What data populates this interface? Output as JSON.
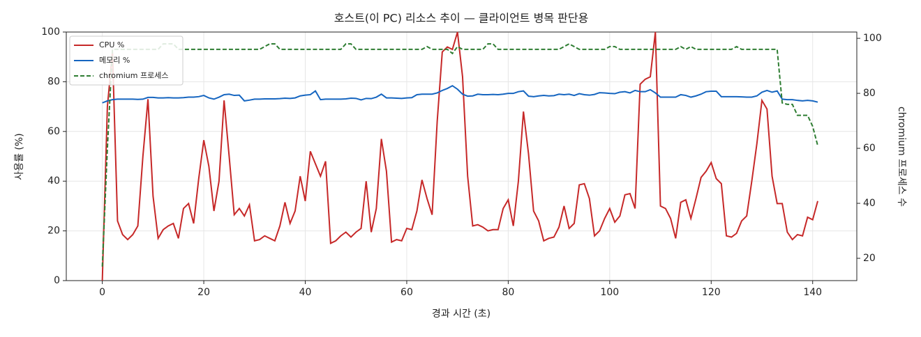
{
  "chart_data": {
    "type": "line",
    "title": "호스트(이 PC) 리소스 추이 — 클라이언트 병목 판단용",
    "xlabel": "경과 시간 (초)",
    "ylabel": "사용률 (%)",
    "y2label": "chromium 프로세스 수",
    "xlim": [
      -7.1,
      148.7
    ],
    "xticks": [
      0,
      20,
      40,
      60,
      80,
      100,
      120,
      140
    ],
    "ylim": [
      0,
      100
    ],
    "yticks": [
      0,
      20,
      40,
      60,
      80,
      100
    ],
    "y2lim": [
      11.9,
      102.3
    ],
    "y2ticks": [
      20,
      40,
      60,
      80,
      100
    ],
    "grid": true,
    "legend": "upper left",
    "x": [
      0,
      1,
      2,
      3,
      4,
      5,
      6,
      7,
      8,
      9,
      10,
      11,
      12,
      13,
      14,
      15,
      16,
      17,
      18,
      19,
      20,
      21,
      22,
      23,
      24,
      25,
      26,
      27,
      28,
      29,
      30,
      31,
      32,
      33,
      34,
      35,
      36,
      37,
      38,
      39,
      40,
      41,
      42,
      43,
      44,
      45,
      46,
      47,
      48,
      49,
      50,
      51,
      52,
      53,
      54,
      55,
      56,
      57,
      58,
      59,
      60,
      61,
      62,
      63,
      64,
      65,
      66,
      67,
      68,
      69,
      70,
      71,
      72,
      73,
      74,
      75,
      76,
      77,
      78,
      79,
      80,
      81,
      82,
      83,
      84,
      85,
      86,
      87,
      88,
      89,
      90,
      91,
      92,
      93,
      94,
      95,
      96,
      97,
      98,
      99,
      100,
      101,
      102,
      103,
      104,
      105,
      106,
      107,
      108,
      109,
      110,
      111,
      112,
      113,
      114,
      115,
      116,
      117,
      118,
      119,
      120,
      121,
      122,
      123,
      124,
      125,
      126,
      127,
      128,
      129,
      130,
      131,
      132,
      133,
      134,
      135,
      136,
      137,
      138,
      139,
      140,
      141
    ],
    "series": [
      {
        "name": "CPU %",
        "color": "#c62828",
        "dash": "solid",
        "values": [
          0,
          70,
          92,
          24,
          18.5,
          16.5,
          18.5,
          22,
          50,
          73,
          34,
          17,
          20.5,
          22,
          23,
          17,
          29,
          31,
          23,
          41,
          56.5,
          46,
          28,
          40,
          72.5,
          50,
          26.5,
          29,
          26,
          30.5,
          16,
          16.5,
          18,
          17,
          16,
          22,
          31.5,
          23,
          28,
          42,
          32,
          52,
          47,
          42,
          48,
          15,
          16,
          18,
          19.5,
          17.5,
          19.5,
          21,
          40,
          19.5,
          29,
          57,
          44,
          15.5,
          16.5,
          16,
          21,
          20.5,
          28,
          40.5,
          33,
          26.5,
          64,
          92,
          94,
          93,
          100,
          82,
          42,
          22,
          22.5,
          21.5,
          20,
          20.5,
          20.5,
          29,
          32.5,
          22,
          40,
          68,
          51,
          28,
          24,
          16,
          17,
          17.5,
          21.5,
          30,
          21,
          23,
          38.5,
          39,
          33,
          18,
          20,
          25,
          29,
          23.5,
          26,
          34.5,
          35,
          29,
          79,
          81,
          82,
          100,
          30,
          29,
          25,
          17,
          31.5,
          32.5,
          25,
          33,
          41.5,
          44,
          47.5,
          41,
          39,
          18,
          17.5,
          19,
          24,
          26,
          40,
          55,
          72.5,
          69,
          42,
          31,
          31,
          19.5,
          16.5,
          18.5,
          18,
          25.5,
          24.5,
          32
        ]
      },
      {
        "name": "메모리 %",
        "color": "#1565c0",
        "dash": "solid",
        "values": [
          71.5,
          72.3,
          72.8,
          73,
          73,
          73,
          73,
          72.9,
          73,
          73.7,
          73.7,
          73.5,
          73.5,
          73.6,
          73.5,
          73.5,
          73.6,
          73.8,
          73.8,
          74,
          74.5,
          73.5,
          73,
          73.8,
          74.8,
          75,
          74.5,
          74.6,
          72.3,
          72.6,
          73,
          73,
          73.1,
          73.1,
          73.1,
          73.2,
          73.4,
          73.3,
          73.5,
          74.3,
          74.6,
          74.8,
          76.3,
          72.8,
          73,
          73,
          73,
          73,
          73.1,
          73.4,
          73.3,
          72.7,
          73.3,
          73.2,
          73.8,
          75,
          73.5,
          73.5,
          73.4,
          73.3,
          73.5,
          73.6,
          74.8,
          75,
          75,
          75,
          75.5,
          76.5,
          77.3,
          78.4,
          77,
          75,
          74.2,
          74.3,
          75,
          74.8,
          74.8,
          74.9,
          74.8,
          75,
          75.3,
          75.3,
          76,
          76.3,
          74.2,
          74,
          74.3,
          74.5,
          74.3,
          74.4,
          75,
          74.8,
          75,
          74.5,
          75.2,
          74.8,
          74.6,
          74.9,
          75.6,
          75.5,
          75.3,
          75.2,
          75.8,
          76,
          75.5,
          76.5,
          76,
          76,
          76.8,
          75.5,
          73.8,
          73.8,
          73.8,
          73.8,
          74.8,
          74.5,
          73.8,
          74.3,
          75,
          76,
          76.2,
          76.2,
          74,
          74,
          74,
          74,
          73.9,
          73.8,
          73.8,
          74.3,
          75.8,
          76.5,
          75.8,
          76.3,
          73,
          72.8,
          72.8,
          72.5,
          72.3,
          72.5,
          72.3,
          71.8
        ]
      },
      {
        "name": "chromium 프로세스",
        "color": "#2e7d32",
        "dash": "dashed",
        "axis": "y2",
        "values": [
          17,
          60,
          96,
          96,
          96,
          96,
          96,
          96,
          96,
          96,
          96,
          96,
          98,
          98,
          98,
          96,
          96,
          96,
          96,
          96,
          96,
          96,
          96,
          96,
          96,
          96,
          96,
          96,
          96,
          96,
          96,
          96,
          97,
          98,
          98,
          96,
          96,
          96,
          96,
          96,
          96,
          96,
          96,
          96,
          96,
          96,
          96,
          96,
          98,
          98,
          96,
          96,
          96,
          96,
          96,
          96,
          96,
          96,
          96,
          96,
          96,
          96,
          96,
          96,
          97,
          96,
          96,
          96,
          96,
          94.5,
          97,
          96,
          96,
          96,
          96,
          96,
          98,
          98,
          96,
          96,
          96,
          96,
          96,
          96,
          96,
          96,
          96,
          96,
          96,
          96,
          96,
          97,
          98,
          97,
          96,
          96,
          96,
          96,
          96,
          96,
          97,
          97,
          96,
          96,
          96,
          96,
          96,
          96,
          96,
          96,
          96,
          96,
          96,
          96,
          97,
          96,
          97,
          96,
          96,
          96,
          96,
          96,
          96,
          96,
          96,
          97,
          96,
          96,
          96,
          96,
          96,
          96,
          96,
          96,
          76.5,
          76,
          76,
          72,
          72,
          72,
          68,
          61
        ]
      }
    ]
  }
}
